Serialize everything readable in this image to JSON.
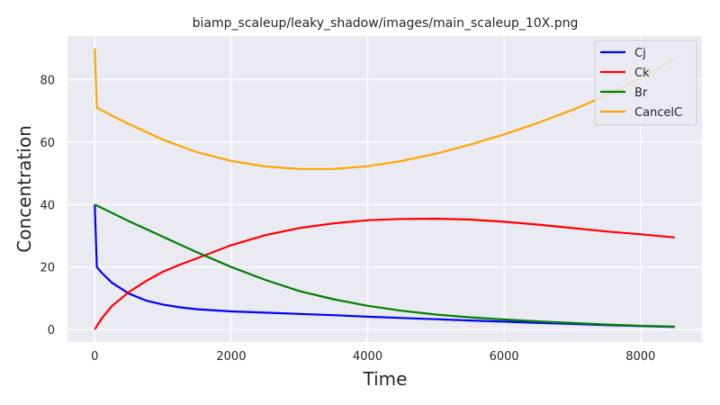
{
  "chart_data": {
    "type": "line",
    "title": "biamp_scaleup/leaky_shadow/images/main_scaleup_10X.png",
    "xlabel": "Time",
    "ylabel": "Concentration",
    "xlim": [
      -400,
      8900
    ],
    "ylim": [
      -4,
      94
    ],
    "xticks": [
      0,
      2000,
      4000,
      6000,
      8000
    ],
    "yticks": [
      0,
      20,
      40,
      60,
      80
    ],
    "grid": true,
    "legend_position": "top-right",
    "background_color": "#eaeaf2",
    "series": [
      {
        "name": "Cj",
        "color": "#0000ff",
        "x": [
          0,
          30,
          100,
          250,
          500,
          750,
          1000,
          1250,
          1500,
          2000,
          2500,
          3000,
          3500,
          4000,
          4500,
          5000,
          5500,
          6000,
          6500,
          7000,
          7500,
          8000,
          8500
        ],
        "y": [
          40,
          20,
          18.2,
          15.0,
          11.5,
          9.3,
          8.0,
          7.1,
          6.5,
          5.8,
          5.4,
          5.0,
          4.6,
          4.1,
          3.7,
          3.3,
          2.9,
          2.5,
          2.1,
          1.8,
          1.4,
          1.1,
          0.8
        ]
      },
      {
        "name": "Ck",
        "color": "#ff0000",
        "x": [
          0,
          100,
          250,
          500,
          750,
          1000,
          1250,
          1500,
          2000,
          2500,
          3000,
          3500,
          4000,
          4500,
          5000,
          5500,
          6000,
          6500,
          7000,
          7500,
          8000,
          8500
        ],
        "y": [
          0,
          3.5,
          7.5,
          12.0,
          15.5,
          18.5,
          20.8,
          22.8,
          27.0,
          30.2,
          32.5,
          34.0,
          35.0,
          35.4,
          35.5,
          35.2,
          34.5,
          33.6,
          32.5,
          31.4,
          30.5,
          29.5
        ]
      },
      {
        "name": "Br",
        "color": "#008000",
        "x": [
          0,
          500,
          1000,
          1500,
          2000,
          2500,
          3000,
          3500,
          4000,
          4500,
          5000,
          5500,
          6000,
          6500,
          7000,
          7500,
          8000,
          8500
        ],
        "y": [
          40,
          34.7,
          29.7,
          24.7,
          20.0,
          15.9,
          12.3,
          9.7,
          7.6,
          6.0,
          4.8,
          3.9,
          3.2,
          2.6,
          2.1,
          1.6,
          1.2,
          0.9
        ]
      },
      {
        "name": "CancelC",
        "color": "#ffa500",
        "x": [
          0,
          30,
          250,
          500,
          1000,
          1500,
          2000,
          2500,
          3000,
          3500,
          4000,
          4500,
          5000,
          5500,
          6000,
          6500,
          7000,
          7500,
          8000,
          8500
        ],
        "y": [
          90,
          71,
          68.5,
          65.8,
          60.8,
          56.8,
          54.0,
          52.2,
          51.4,
          51.4,
          52.3,
          54.0,
          56.3,
          59.2,
          62.5,
          66.2,
          70.3,
          75.0,
          80.5,
          86.5
        ]
      }
    ]
  }
}
